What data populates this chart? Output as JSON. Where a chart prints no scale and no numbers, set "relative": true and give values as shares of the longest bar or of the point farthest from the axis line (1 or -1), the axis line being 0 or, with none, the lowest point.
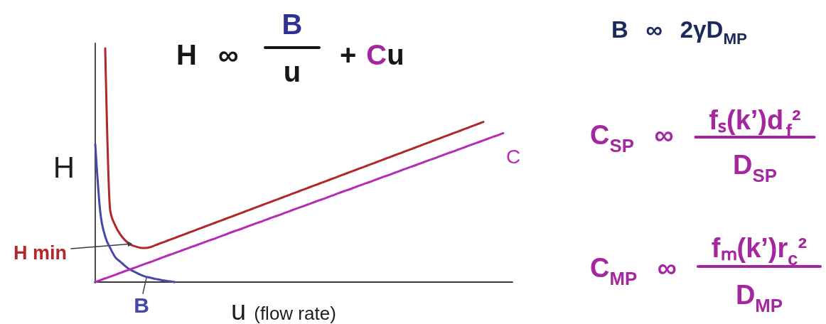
{
  "chart_data": {
    "type": "line",
    "relative": true,
    "ylabel": "H",
    "xlabel": "u (flow rate)",
    "annotations": [
      "B",
      "H ∞",
      "+ Cu",
      "u",
      "B ∞ 2γD$_{MP}$",
      "C$_{SP}$ ∞",
      "fₛ(k’)d$_{f}$²",
      "D$_{SP}$",
      "C$_{MP}$ ∞",
      "fₘ(k’)r$_{c}$²",
      "D$_{MP}$",
      "H min"
    ],
    "categories": [
      null,
      null,
      null,
      null,
      null,
      null,
      null,
      null,
      null,
      null,
      null,
      null,
      null,
      null,
      null,
      null,
      null,
      null,
      null,
      null,
      null,
      null,
      null,
      null,
      null,
      null,
      null,
      null,
      null,
      null,
      null,
      null,
      null,
      null,
      null,
      null,
      null,
      null,
      null,
      null,
      null,
      null,
      null,
      null,
      null,
      null,
      null,
      null,
      null,
      null,
      null,
      null,
      null,
      null,
      null,
      null,
      null,
      null,
      null,
      null,
      null,
      null,
      null,
      null,
      null,
      null,
      null,
      null,
      null,
      null,
      null,
      null,
      null,
      null,
      null,
      null,
      null,
      null,
      null,
      null,
      null,
      null,
      null
    ],
    "series": [
      {
        "color": "#b0282b",
        "values": [
          null,
          null,
          1.0,
          0.307,
          0.243,
          0.205,
          0.179,
          0.161,
          0.153,
          0.147,
          0.146,
          0.149,
          0.157,
          0.165,
          0.173,
          0.181,
          0.189,
          0.197,
          0.205,
          0.213,
          0.221,
          0.229,
          0.237,
          0.245,
          0.253,
          0.261,
          0.269,
          0.277,
          0.285,
          0.293,
          0.301,
          0.309,
          0.317,
          0.325,
          0.333,
          0.341,
          0.349,
          0.357,
          0.365,
          0.373,
          0.381,
          0.389,
          0.397,
          0.405,
          0.413,
          0.421,
          0.429,
          0.437,
          0.445,
          0.453,
          0.461,
          0.469,
          0.477,
          0.485,
          0.493,
          0.501,
          0.509,
          0.517,
          0.525,
          0.533,
          0.541,
          0.549,
          0.557,
          0.565,
          0.573,
          0.581,
          0.589,
          0.597,
          0.605,
          0.613,
          0.621,
          0.629,
          0.637,
          0.645,
          0.653,
          0.661,
          0.669,
          0.677,
          0.685,
          null,
          null,
          null,
          null
        ]
      },
      {
        "name": "B",
        "color": "#4848a8",
        "values": [
          0.59,
          0.301,
          0.195,
          0.146,
          0.107,
          0.088,
          0.069,
          0.053,
          0.043,
          0.032,
          0.024,
          0.019,
          0.014,
          0.01,
          0.006,
          0.003,
          0,
          null,
          null,
          null,
          null,
          null,
          null,
          null,
          null,
          null,
          null,
          null,
          null,
          null,
          null,
          null,
          null,
          null,
          null,
          null,
          null,
          null,
          null,
          null,
          null,
          null,
          null,
          null,
          null,
          null,
          null,
          null,
          null,
          null,
          null,
          null,
          null,
          null,
          null,
          null,
          null,
          null,
          null,
          null,
          null,
          null,
          null,
          null,
          null,
          null,
          null,
          null,
          null,
          null,
          null,
          null,
          null,
          null,
          null,
          null,
          null,
          null,
          null,
          null,
          null,
          null,
          null
        ]
      },
      {
        "name": "C",
        "color": "#b42db4",
        "values": [
          0,
          0.008,
          0.016,
          0.023,
          0.031,
          0.039,
          0.047,
          0.054,
          0.062,
          0.07,
          0.078,
          0.085,
          0.093,
          0.101,
          0.109,
          0.117,
          0.124,
          0.132,
          0.14,
          0.148,
          0.155,
          0.163,
          0.171,
          0.179,
          0.186,
          0.194,
          0.202,
          0.21,
          0.218,
          0.225,
          0.233,
          0.241,
          0.249,
          0.256,
          0.264,
          0.272,
          0.28,
          0.287,
          0.295,
          0.303,
          0.311,
          0.319,
          0.326,
          0.334,
          0.342,
          0.35,
          0.357,
          0.365,
          0.373,
          0.381,
          0.389,
          0.396,
          0.404,
          0.412,
          0.42,
          0.427,
          0.435,
          0.443,
          0.451,
          0.458,
          0.466,
          0.474,
          0.482,
          0.49,
          0.497,
          0.505,
          0.513,
          0.521,
          0.528,
          0.536,
          0.544,
          0.552,
          0.559,
          0.567,
          0.575,
          0.583,
          0.591,
          0.598,
          0.606,
          0.614,
          0.622,
          0.629,
          0.637
        ]
      }
    ]
  }
}
